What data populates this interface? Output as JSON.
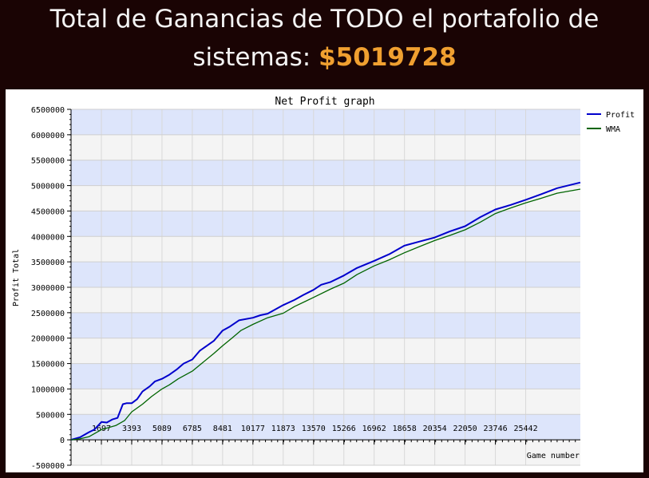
{
  "header": {
    "line1": "Total de Ganancias de TODO el portafolio de",
    "line2_prefix": "sistemas:",
    "amount": "$5019728"
  },
  "colors": {
    "band_blue": "#dde5fb",
    "band_gray": "#f4f4f4",
    "profit": "#0000cc",
    "wma": "#006400",
    "amount": "#f0a030"
  },
  "chart_data": {
    "type": "line",
    "title": "Net Profit graph",
    "xlabel": "Game number",
    "ylabel": "Profit Total",
    "xlim": [
      0,
      28500
    ],
    "ylim": [
      -500000,
      6500000
    ],
    "grid": true,
    "legend_position": "top-right",
    "x_ticks": [
      1697,
      3393,
      5089,
      6785,
      8481,
      10177,
      11873,
      13570,
      15266,
      16962,
      18658,
      20354,
      22050,
      23746,
      25442
    ],
    "y_ticks": [
      6500000,
      6000000,
      5500000,
      5000000,
      4500000,
      4000000,
      3500000,
      3000000,
      2500000,
      2000000,
      1500000,
      1000000,
      500000,
      0,
      -500000
    ],
    "series": [
      {
        "name": "Profit",
        "color": "#0000cc",
        "x": [
          0,
          500,
          1000,
          1300,
          1700,
          2000,
          2300,
          2600,
          2900,
          3100,
          3393,
          3700,
          4000,
          4400,
          4700,
          5089,
          5500,
          5900,
          6300,
          6785,
          7200,
          7600,
          8000,
          8481,
          8900,
          9400,
          10177,
          10600,
          11000,
          11873,
          12500,
          13000,
          13570,
          14000,
          14500,
          15266,
          16000,
          16962,
          17800,
          18658,
          19500,
          20354,
          21200,
          22050,
          22900,
          23746,
          24600,
          25442,
          26300,
          27200,
          28500
        ],
        "y": [
          0,
          50000,
          150000,
          200000,
          350000,
          340000,
          400000,
          430000,
          700000,
          720000,
          720000,
          800000,
          950000,
          1050000,
          1150000,
          1200000,
          1280000,
          1380000,
          1500000,
          1580000,
          1750000,
          1850000,
          1950000,
          2150000,
          2230000,
          2350000,
          2400000,
          2450000,
          2480000,
          2650000,
          2750000,
          2850000,
          2950000,
          3050000,
          3100000,
          3230000,
          3380000,
          3520000,
          3650000,
          3820000,
          3900000,
          3980000,
          4100000,
          4200000,
          4380000,
          4530000,
          4620000,
          4720000,
          4830000,
          4950000,
          5060000
        ]
      },
      {
        "name": "WMA",
        "color": "#006400",
        "x": [
          0,
          500,
          1000,
          1697,
          2500,
          3000,
          3393,
          4000,
          4500,
          5089,
          5500,
          6000,
          6785,
          7300,
          8000,
          8481,
          9000,
          9500,
          10177,
          11000,
          11873,
          12500,
          13570,
          14500,
          15266,
          16000,
          16962,
          17800,
          18658,
          19500,
          20354,
          21200,
          22050,
          22900,
          23746,
          24600,
          25442,
          26300,
          27200,
          28500
        ],
        "y": [
          0,
          20000,
          60000,
          200000,
          280000,
          380000,
          550000,
          700000,
          850000,
          1000000,
          1080000,
          1200000,
          1350000,
          1500000,
          1700000,
          1850000,
          2000000,
          2150000,
          2270000,
          2400000,
          2490000,
          2620000,
          2800000,
          2960000,
          3080000,
          3250000,
          3420000,
          3540000,
          3680000,
          3800000,
          3920000,
          4020000,
          4130000,
          4280000,
          4450000,
          4560000,
          4660000,
          4750000,
          4850000,
          4930000
        ]
      }
    ]
  }
}
